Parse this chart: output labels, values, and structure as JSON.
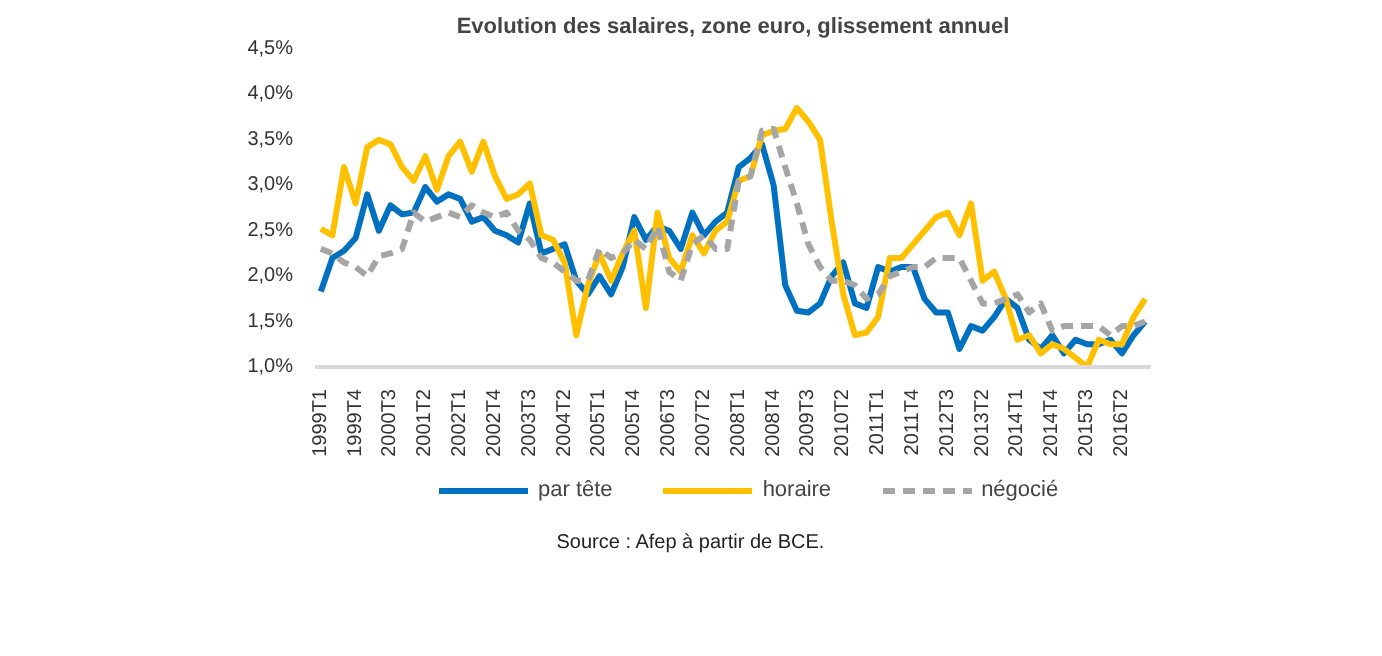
{
  "chart_data": {
    "type": "line",
    "title": "Evolution des salaires, zone euro, glissement annuel",
    "categories": [
      "1999T1",
      null,
      null,
      "1999T4",
      null,
      null,
      "2000T3",
      null,
      null,
      "2001T2",
      null,
      null,
      "2002T1",
      null,
      null,
      "2002T4",
      null,
      null,
      "2003T3",
      null,
      null,
      "2004T2",
      null,
      null,
      "2005T1",
      null,
      null,
      "2005T4",
      null,
      null,
      "2006T3",
      null,
      null,
      "2007T2",
      null,
      null,
      "2008T1",
      null,
      null,
      "2008T4",
      null,
      null,
      "2009T3",
      null,
      null,
      "2010T2",
      null,
      null,
      "2011T1",
      null,
      null,
      "2011T4",
      null,
      null,
      "2012T3",
      null,
      null,
      "2013T2",
      null,
      null,
      "2014T1",
      null,
      null,
      "2014T4",
      null,
      null,
      "2015T3",
      null,
      null,
      "2016T2",
      null,
      null
    ],
    "series": [
      {
        "name": "par tête",
        "color": "#0070c0",
        "line_style": "solid",
        "values": [
          1.83,
          2.2,
          2.28,
          2.42,
          2.9,
          2.5,
          2.78,
          2.68,
          2.7,
          2.98,
          2.82,
          2.9,
          2.85,
          2.6,
          2.65,
          2.5,
          2.45,
          2.37,
          2.8,
          2.25,
          2.3,
          2.35,
          1.95,
          1.8,
          2.0,
          1.8,
          2.1,
          2.65,
          2.4,
          2.55,
          2.5,
          2.3,
          2.7,
          2.45,
          2.6,
          2.7,
          3.2,
          3.3,
          3.45,
          3.0,
          1.9,
          1.62,
          1.6,
          1.7,
          2.0,
          2.15,
          1.7,
          1.65,
          2.1,
          2.05,
          2.1,
          2.1,
          1.75,
          1.6,
          1.6,
          1.2,
          1.45,
          1.4,
          1.55,
          1.75,
          1.65,
          1.3,
          1.2,
          1.35,
          1.15,
          1.3,
          1.25,
          1.25,
          1.3,
          1.15,
          1.35,
          1.5
        ]
      },
      {
        "name": "horaire",
        "color": "#ffc000",
        "line_style": "solid",
        "values": [
          2.52,
          2.45,
          3.2,
          2.8,
          3.42,
          3.5,
          3.45,
          3.2,
          3.05,
          3.32,
          2.95,
          3.32,
          3.48,
          3.15,
          3.48,
          3.1,
          2.85,
          2.9,
          3.02,
          2.45,
          2.4,
          2.15,
          1.35,
          1.9,
          2.25,
          1.95,
          2.25,
          2.5,
          1.65,
          2.7,
          2.2,
          2.05,
          2.45,
          2.25,
          2.5,
          2.6,
          3.05,
          3.1,
          3.55,
          3.6,
          3.62,
          3.85,
          3.7,
          3.5,
          2.6,
          1.8,
          1.35,
          1.38,
          1.55,
          2.2,
          2.2,
          2.35,
          2.5,
          2.65,
          2.7,
          2.45,
          2.8,
          1.95,
          2.05,
          1.75,
          1.3,
          1.35,
          1.15,
          1.25,
          1.2,
          1.1,
          1.0,
          1.3,
          1.25,
          1.25,
          1.55,
          1.75
        ]
      },
      {
        "name": "négocié",
        "color": "#a5a5a5",
        "line_style": "dashed",
        "values": [
          2.3,
          2.25,
          2.15,
          2.1,
          2.0,
          2.22,
          2.25,
          2.3,
          2.7,
          2.6,
          2.65,
          2.7,
          2.65,
          2.78,
          2.7,
          2.65,
          2.7,
          2.5,
          2.4,
          2.2,
          2.15,
          2.05,
          1.95,
          1.95,
          2.3,
          2.2,
          2.25,
          2.4,
          2.3,
          2.55,
          2.05,
          1.95,
          2.35,
          2.45,
          2.3,
          2.3,
          3.05,
          3.1,
          3.6,
          3.62,
          3.2,
          2.8,
          2.35,
          2.1,
          1.95,
          1.95,
          1.9,
          1.75,
          1.8,
          2.0,
          2.05,
          2.1,
          2.1,
          2.2,
          2.2,
          2.2,
          1.95,
          1.7,
          1.7,
          1.75,
          1.8,
          1.6,
          1.7,
          1.4,
          1.45,
          1.45,
          1.45,
          1.45,
          1.35,
          1.45,
          1.45,
          1.5
        ]
      }
    ],
    "ylim": [
      1.0,
      4.5
    ],
    "yticks": [
      {
        "value": 1.0,
        "label": "1,0%"
      },
      {
        "value": 1.5,
        "label": "1,5%"
      },
      {
        "value": 2.0,
        "label": "2,0%"
      },
      {
        "value": 2.5,
        "label": "2,5%"
      },
      {
        "value": 3.0,
        "label": "3,0%"
      },
      {
        "value": 3.5,
        "label": "3,5%"
      },
      {
        "value": 4.0,
        "label": "4,0%"
      },
      {
        "value": 4.5,
        "label": "4,5%"
      }
    ],
    "grid": false,
    "legend": "bottom",
    "annotations": [
      "Source : Afep à partir de BCE."
    ]
  }
}
